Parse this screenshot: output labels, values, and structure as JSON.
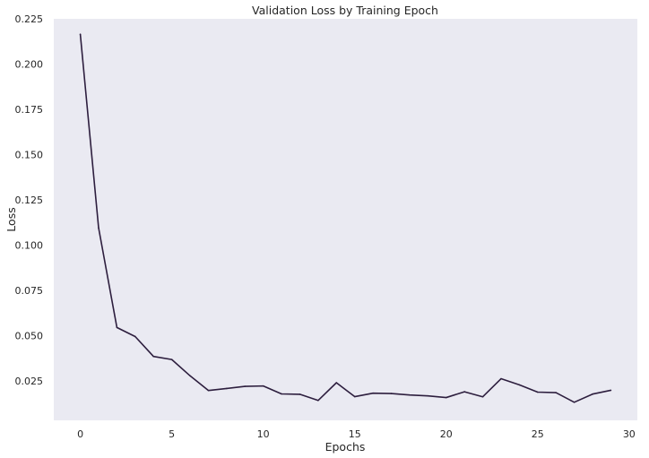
{
  "chart_data": {
    "type": "line",
    "title": "Validation Loss by Training Epoch",
    "xlabel": "Epochs",
    "ylabel": "Loss",
    "xlim": [
      -1.45,
      30.45
    ],
    "ylim": [
      0.0032,
      0.225
    ],
    "xticks": [
      0,
      5,
      10,
      15,
      20,
      25,
      30
    ],
    "xtick_labels": [
      "0",
      "5",
      "10",
      "15",
      "20",
      "25",
      "30"
    ],
    "yticks": [
      0.025,
      0.05,
      0.075,
      0.1,
      0.125,
      0.15,
      0.175,
      0.2,
      0.225
    ],
    "ytick_labels": [
      "0.025",
      "0.050",
      "0.075",
      "0.100",
      "0.125",
      "0.150",
      "0.175",
      "0.200",
      "0.225"
    ],
    "grid": false,
    "background_color": "#eaeaf2",
    "line_color": "#2d1e3e",
    "series": [
      {
        "x": [
          0,
          1,
          2,
          3,
          4,
          5,
          6,
          7,
          8,
          9,
          10,
          11,
          12,
          13,
          14,
          15,
          16,
          17,
          18,
          19,
          20,
          21,
          22,
          23,
          24,
          25,
          26,
          27,
          28,
          29
        ],
        "values": [
          0.2165,
          0.1095,
          0.0545,
          0.0495,
          0.0385,
          0.0368,
          0.0278,
          0.0197,
          0.0208,
          0.022,
          0.0222,
          0.0178,
          0.0176,
          0.0142,
          0.024,
          0.0163,
          0.0182,
          0.018,
          0.0172,
          0.0167,
          0.0158,
          0.019,
          0.0162,
          0.0262,
          0.0228,
          0.0188,
          0.0185,
          0.0132,
          0.0177,
          0.0198
        ]
      }
    ]
  }
}
